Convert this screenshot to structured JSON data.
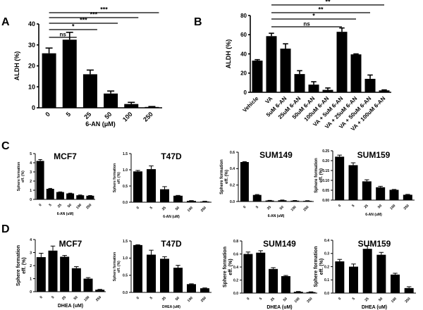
{
  "panel_labels": [
    "A",
    "B",
    "C",
    "D"
  ],
  "chart_data": [
    {
      "id": "A",
      "type": "bar",
      "title": "",
      "xlabel": "6-AN (μM)",
      "ylabel": "ALDH (%)",
      "ylim": [
        0,
        40
      ],
      "yticks": [
        0,
        10,
        20,
        30,
        40
      ],
      "categories": [
        "0",
        "5",
        "25",
        "50",
        "100",
        "250"
      ],
      "values": [
        26,
        32.5,
        16,
        6.8,
        1.8,
        0.4
      ],
      "errors": [
        2.5,
        3.5,
        2,
        1.2,
        0.8,
        0.2
      ],
      "significance": [
        {
          "from": "0",
          "to": "5",
          "label": "ns"
        },
        {
          "from": "0",
          "to": "25",
          "label": "*"
        },
        {
          "from": "0",
          "to": "50",
          "label": "***"
        },
        {
          "from": "0",
          "to": "100",
          "label": "***"
        },
        {
          "from": "0",
          "to": "250",
          "label": "***"
        }
      ]
    },
    {
      "id": "B",
      "type": "bar",
      "title": "",
      "xlabel": "",
      "ylabel": "ALDH (%)",
      "ylim": [
        0,
        80
      ],
      "yticks": [
        0,
        20,
        40,
        60,
        80
      ],
      "categories": [
        "Vehicle",
        "VA",
        "5uM 6-AN",
        "25uM 6-AN",
        "50uM 6-AN",
        "100uM 6-AN",
        "VA + 5uM 6-AN",
        "VA + 25uM 6-AN",
        "VA + 50uM 6-AN",
        "VA + 100uM 6-AN"
      ],
      "values": [
        33,
        58.5,
        45.5,
        19,
        8,
        2.5,
        63,
        39.5,
        14,
        2
      ],
      "errors": [
        1,
        3,
        5,
        3.5,
        3,
        2,
        4,
        0.5,
        4,
        0.5
      ],
      "significance": [
        {
          "from": "VA",
          "to": "VA + 5uM 6-AN",
          "label": "ns"
        },
        {
          "from": "VA",
          "to": "VA + 25uM 6-AN",
          "label": "*"
        },
        {
          "from": "VA",
          "to": "VA + 50uM 6-AN",
          "label": "**"
        },
        {
          "from": "VA",
          "to": "VA + 100uM 6-AN",
          "label": "**"
        }
      ]
    },
    {
      "id": "C-MCF7",
      "type": "bar",
      "title": "MCF7",
      "xlabel": "6-AN (uM)",
      "ylabel": "Sphere formation eff. (%)",
      "ylim": [
        0,
        5
      ],
      "yticks": [
        0,
        1,
        2,
        3,
        4,
        5
      ],
      "categories": [
        "0",
        "5",
        "25",
        "50",
        "100",
        "250"
      ],
      "values": [
        4.2,
        1.15,
        0.8,
        0.65,
        0.45,
        0.4
      ],
      "errors": [
        0.15,
        0.05,
        0.02,
        0.03,
        0.03,
        0.02
      ]
    },
    {
      "id": "C-T47D",
      "type": "bar",
      "title": "T47D",
      "xlabel": "6-AN (uM)",
      "ylabel": "Sphere formation eff. (%)",
      "ylim": [
        0,
        1.5
      ],
      "yticks": [
        0,
        0.5,
        1.0,
        1.5
      ],
      "categories": [
        "0",
        "5",
        "25",
        "50",
        "100",
        "250"
      ],
      "values": [
        0.95,
        1.02,
        0.4,
        0.2,
        0.04,
        0.02
      ],
      "errors": [
        0.03,
        0.1,
        0.08,
        0.01,
        0.01,
        0.01
      ]
    },
    {
      "id": "C-SUM149",
      "type": "bar",
      "title": "SUM149",
      "xlabel": "6-AN (uM)",
      "ylabel": "Sphere formation eff. (%)",
      "ylim": [
        0,
        0.6
      ],
      "yticks": [
        0,
        0.2,
        0.4,
        0.6
      ],
      "categories": [
        "0",
        "5",
        "25",
        "50",
        "100",
        "250"
      ],
      "values": [
        0.48,
        0.08,
        0.012,
        0.015,
        0.01,
        0.008
      ],
      "errors": [
        0.005,
        0.005,
        0.002,
        0.003,
        0.002,
        0.002
      ]
    },
    {
      "id": "C-SUM159",
      "type": "bar",
      "title": "SUM159",
      "xlabel": "6-AN (uM)",
      "ylabel": "Sphere formation eff. (%)",
      "ylim": [
        0,
        0.25
      ],
      "yticks": [
        0,
        0.05,
        0.1,
        0.15,
        0.2,
        0.25
      ],
      "categories": [
        "0",
        "5",
        "25",
        "50",
        "100",
        "250"
      ],
      "values": [
        0.22,
        0.177,
        0.095,
        0.065,
        0.052,
        0.027
      ],
      "errors": [
        0.008,
        0.012,
        0.008,
        0.005,
        0.002,
        0.002
      ]
    },
    {
      "id": "D-MCF7",
      "type": "bar",
      "title": "MCF7",
      "xlabel": "DHEA (uM)",
      "ylabel": "Sphere formation eff. (%)",
      "ylim": [
        0,
        4
      ],
      "yticks": [
        0,
        1,
        2,
        3,
        4
      ],
      "categories": [
        "0",
        "5",
        "25",
        "50",
        "100",
        "250"
      ],
      "values": [
        2.65,
        3.15,
        2.68,
        1.8,
        1.0,
        0.15
      ],
      "errors": [
        0.3,
        0.35,
        0.1,
        0.12,
        0.08,
        0.03
      ]
    },
    {
      "id": "D-T47D",
      "type": "bar",
      "title": "T47D",
      "xlabel": "DHEA (uM)",
      "ylabel": "Sphere formation eff. (%)",
      "ylim": [
        0,
        1.5
      ],
      "yticks": [
        0,
        0.5,
        1.0,
        1.5
      ],
      "categories": [
        "0",
        "5",
        "25",
        "50",
        "100",
        "250"
      ],
      "values": [
        1.38,
        1.1,
        0.98,
        0.72,
        0.24,
        0.12
      ],
      "errors": [
        0.01,
        0.13,
        0.06,
        0.07,
        0.01,
        0.01
      ]
    },
    {
      "id": "D-SUM149",
      "type": "bar",
      "title": "SUM149",
      "xlabel": "DHEA (uM)",
      "ylabel": "Sphere formation eff. (%)",
      "ylim": [
        0,
        0.8
      ],
      "yticks": [
        0,
        0.2,
        0.4,
        0.6,
        0.8
      ],
      "categories": [
        "0",
        "5",
        "25",
        "50",
        "100",
        "250"
      ],
      "values": [
        0.6,
        0.62,
        0.37,
        0.26,
        0.02,
        0.015
      ],
      "errors": [
        0.03,
        0.03,
        0.02,
        0.01,
        0.005,
        0.005
      ]
    },
    {
      "id": "D-SUM159",
      "type": "bar",
      "title": "SUM159",
      "xlabel": "DHEA (uM)",
      "ylabel": "Sphere formation eff. (%)",
      "ylim": [
        0,
        0.4
      ],
      "yticks": [
        0,
        0.1,
        0.2,
        0.3,
        0.4
      ],
      "categories": [
        "0",
        "5",
        "25",
        "50",
        "100",
        "250"
      ],
      "values": [
        0.24,
        0.2,
        0.335,
        0.29,
        0.14,
        0.038
      ],
      "errors": [
        0.015,
        0.02,
        0.025,
        0.018,
        0.01,
        0.01
      ]
    }
  ]
}
